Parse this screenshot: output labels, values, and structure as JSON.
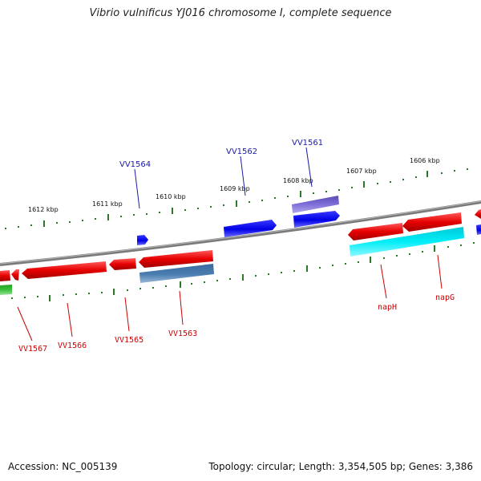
{
  "header": {
    "title": "Vibrio vulnificus YJ016 chromosome I, complete sequence"
  },
  "footer": {
    "accession": "Accession: NC_005139",
    "summary": "Topology: circular; Length: 3,354,505 bp; Genes: 3,386"
  },
  "scale_labels": [
    "1612 kbp",
    "1611 kbp",
    "1610 kbp",
    "1609 kbp",
    "1608 kbp",
    "1607 kbp",
    "1606 kbp"
  ],
  "gene_labels_top": [
    "VV1564",
    "VV1562",
    "VV1561"
  ],
  "gene_labels_bottom": [
    "VV1567",
    "VV1566",
    "VV1565",
    "VV1563",
    "napH",
    "napG"
  ],
  "colors": {
    "top_label": "#1a1aa8",
    "bottom_label": "#cc0000",
    "backbone": "#808080",
    "tick": "#2a7a2a",
    "gene_red": "#e60000",
    "gene_blue": "#0000e6",
    "gene_purple": "#6f5fc8",
    "gene_steel": "#4a7db0",
    "gene_cyan": "#00e5f0",
    "gene_green": "#3ab03a"
  }
}
